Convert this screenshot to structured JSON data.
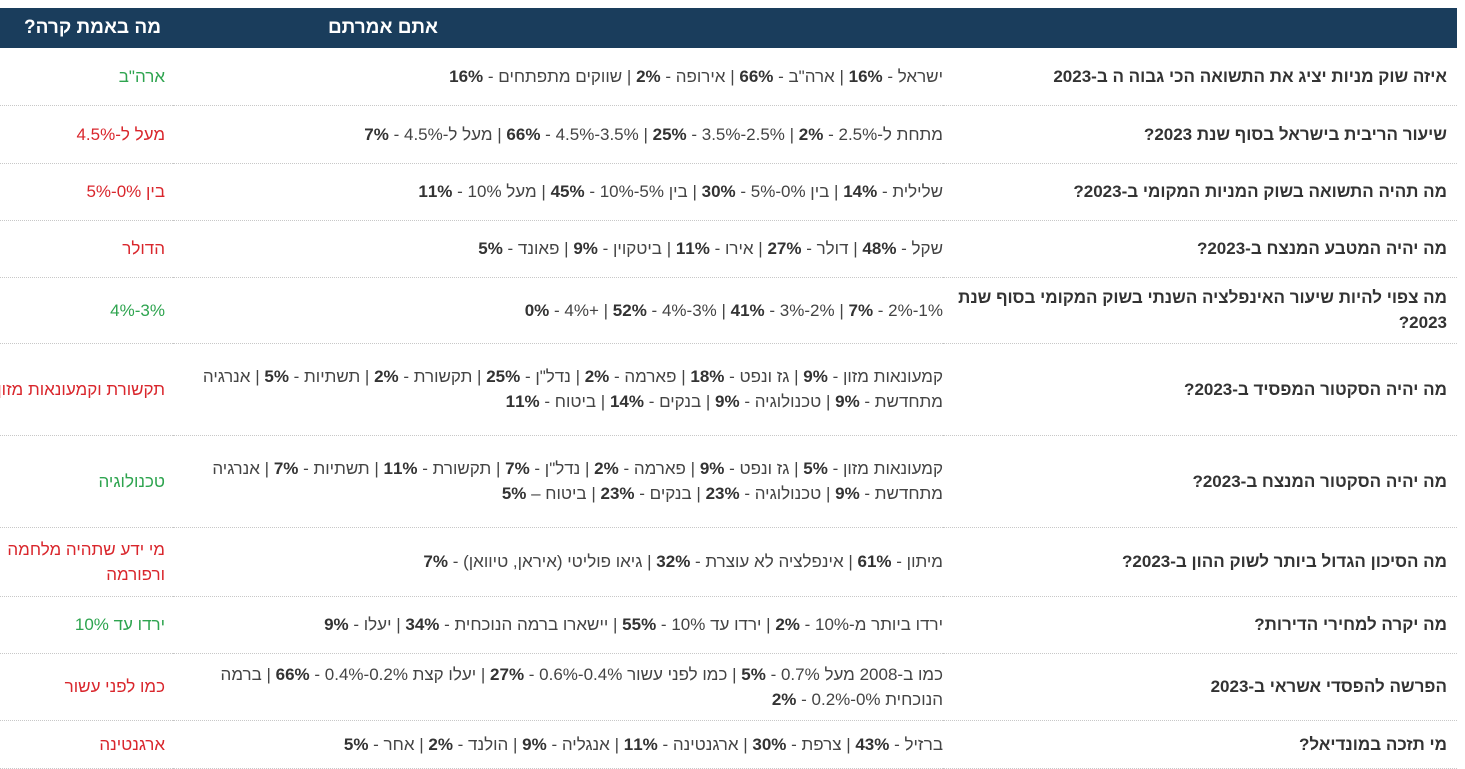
{
  "header": {
    "question": "",
    "said": "אתם אמרתם",
    "reality": "מה באמת קרה?"
  },
  "colors": {
    "header_bg": "#1a3d5c",
    "correct": "#2ea44f",
    "wrong": "#d9262c"
  },
  "rows": [
    {
      "question": "איזה שוק מניות יציג את התשואה הכי גבוה ה ב-2023",
      "answers": [
        "ישראל - 16%",
        "ארה\"ב - 66%",
        "אירופה - 2%",
        "שווקים מתפתחים - 16%"
      ],
      "reality": "ארה\"ב",
      "status": "correct",
      "height": 57
    },
    {
      "question": "שיעור הריבית בישראל בסוף שנת 2023?",
      "answers": [
        "מתחת ל-2.5% - 2%",
        "2.5%-3.5% - 25%",
        "3.5%-4.5% - 66%",
        "מעל ל-4.5% - 7%"
      ],
      "reality": "מעל ל-4.5%",
      "status": "wrong",
      "height": 58
    },
    {
      "question": "מה תהיה התשואה בשוק המניות המקומי ב-2023?",
      "answers": [
        "שלילית - 14%",
        "בין 0%-5% - 30%",
        "בין 5%-10% - 45%",
        "מעל 10% - 11%"
      ],
      "reality": "בין 0%-5%",
      "status": "wrong",
      "height": 57
    },
    {
      "question": "מה יהיה המטבע המנצח ב-2023?",
      "answers": [
        "שקל - 48%",
        "דולר - 27%",
        "אירו - 11%",
        "ביטקוין - 9%",
        "פאונד - 5%"
      ],
      "reality": "הדולר",
      "status": "wrong",
      "height": 57
    },
    {
      "question": "מה צפוי להיות שיעור האינפלציה השנתי בשוק המקומי בסוף שנת 2023?",
      "answers": [
        "1%-2% - 7%",
        "2%-3% - 41%",
        "3%-4% - 52%",
        "+4% - 0%"
      ],
      "reality": "3%-4%",
      "status": "correct",
      "height": 66
    },
    {
      "question": "מה יהיה הסקטור המפסיד ב-2023?",
      "answers": [
        "קמעונאות מזון - 9%",
        "גז ונפט - 18%",
        "פארמה - 2%",
        "נדל\"ן - 25%",
        "תקשורת - 2%",
        "תשתיות - 5%",
        "אנרגיה מתחדשת - 9%",
        "טכנולוגיה - 9%",
        "בנקים - 14%",
        "ביטוח - 11%"
      ],
      "reality": "תקשורת וקמעונאות מזון",
      "status": "wrong",
      "height": 92
    },
    {
      "question": "מה יהיה הסקטור המנצח ב-2023?",
      "answers": [
        "קמעונאות מזון - 5%",
        "גז ונפט - 9%",
        "פארמה - 2%",
        "נדל\"ן - 7%",
        "תקשורת - 11%",
        "תשתיות - 7%",
        "אנרגיה מתחדשת - 9%",
        "טכנולוגיה - 23%",
        "בנקים - 23%",
        "ביטוח – 5%"
      ],
      "reality": "טכנולוגיה",
      "status": "correct",
      "height": 92
    },
    {
      "question": "מה הסיכון הגדול ביותר לשוק ההון ב-2023?",
      "answers": [
        "מיתון - 61%",
        "אינפלציה לא עוצרת - 32%",
        "גיאו פוליטי (איראן, טיוואן) - 7%"
      ],
      "reality": "מי ידע שתהיה מלחמה ורפורמה",
      "status": "wrong",
      "height": 69
    },
    {
      "question": "מה יקרה למחירי הדירות?",
      "answers": [
        "ירדו ביותר מ-10% - 2%",
        "ירדו עד 10% - 55%",
        "יישארו ברמה הנוכחית - 34%",
        "יעלו - 9%"
      ],
      "reality": "ירדו עד 10%",
      "status": "correct",
      "height": 57
    },
    {
      "question": "הפרשה להפסדי אשראי ב-2023",
      "answers": [
        "כמו ב-2008 מעל 0.7% - 5%",
        "כמו לפני עשור 0.4%-0.6% - 27%",
        "יעלו קצת 0.2%-0.4% - 66%",
        "ברמה הנוכחית 0%-0.2% - 2%"
      ],
      "reality": "כמו לפני עשור",
      "status": "wrong",
      "height": 67
    },
    {
      "question": "מי תזכה במונדיאל?",
      "answers": [
        "ברזיל - 43%",
        "צרפת - 30%",
        "ארגנטינה - 11%",
        "אנגליה - 9%",
        "הולנד - 2%",
        "אחר - 5%"
      ],
      "reality": "ארגנטינה",
      "status": "wrong",
      "height": 48
    }
  ]
}
